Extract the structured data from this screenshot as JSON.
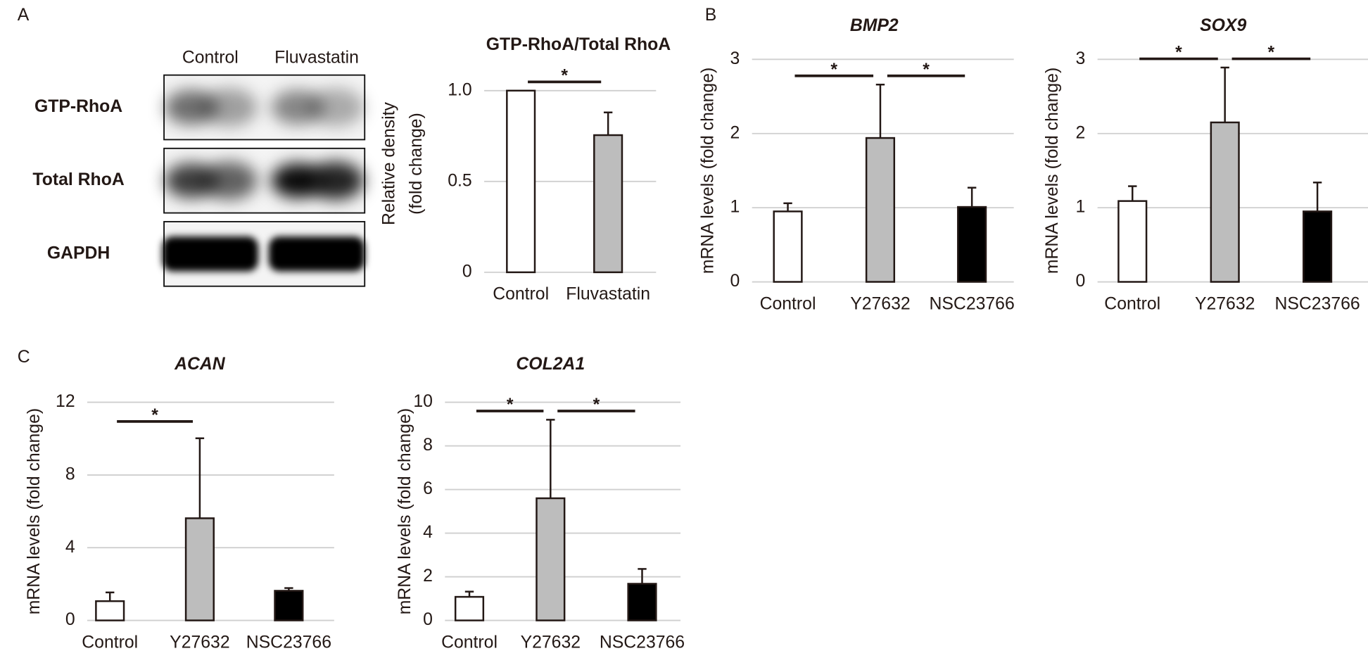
{
  "panels": [
    "A",
    "B",
    "C"
  ],
  "blot": {
    "lanes": [
      "Control",
      "Fluvastatin"
    ],
    "rows": [
      "GTP-RhoA",
      "Total RhoA",
      "GAPDH"
    ]
  },
  "chart_data": [
    {
      "type": "bar",
      "title": "GTP-RhoA/Total RhoA",
      "ylabel": [
        "Relative density",
        "(fold change)"
      ],
      "categories": [
        "Control",
        "Fluvastatin"
      ],
      "values": [
        1.0,
        0.755
      ],
      "errors": [
        0,
        0.125
      ],
      "colors": [
        "#ffffff",
        "#bdbdbd"
      ],
      "ylim": [
        0,
        1.1
      ],
      "yticks": [
        0,
        0.5,
        {
          "value": 1,
          "label": "1.0"
        }
      ],
      "grid": true,
      "significance": [
        {
          "pair": [
            "Control",
            "Fluvastatin"
          ],
          "label": "*"
        }
      ]
    },
    {
      "type": "bar",
      "title": "BMP2",
      "ylabel": [
        "mRNA levels (fold change)"
      ],
      "categories": [
        "Control",
        "Y27632",
        "NSC23766"
      ],
      "values": [
        0.95,
        1.94,
        1.01
      ],
      "errors": [
        0.11,
        0.72,
        0.26
      ],
      "colors": [
        "#ffffff",
        "#bdbdbd",
        "#000000"
      ],
      "ylim": [
        0,
        3
      ],
      "yticks": [
        0,
        1,
        2,
        3
      ],
      "grid": true,
      "significance": [
        {
          "pair": [
            "Control",
            "Y27632"
          ],
          "label": "*"
        },
        {
          "pair": [
            "Y27632",
            "NSC23766"
          ],
          "label": "*"
        }
      ]
    },
    {
      "type": "bar",
      "title": "SOX9",
      "ylabel": [
        "mRNA levels (fold change)"
      ],
      "categories": [
        "Control",
        "Y27632",
        "NSC23766"
      ],
      "values": [
        1.09,
        2.15,
        0.95
      ],
      "errors": [
        0.2,
        0.74,
        0.39
      ],
      "colors": [
        "#ffffff",
        "#bdbdbd",
        "#000000"
      ],
      "ylim": [
        0,
        3
      ],
      "yticks": [
        0,
        1,
        2,
        3
      ],
      "grid": true,
      "significance": [
        {
          "pair": [
            "Control",
            "Y27632"
          ],
          "label": "*"
        },
        {
          "pair": [
            "Y27632",
            "NSC23766"
          ],
          "label": "*"
        }
      ]
    },
    {
      "type": "bar",
      "title": "ACAN",
      "ylabel": [
        "mRNA levels (fold change)"
      ],
      "categories": [
        "Control",
        "Y27632",
        "NSC23766"
      ],
      "values": [
        1.06,
        5.62,
        1.63
      ],
      "errors": [
        0.48,
        4.4,
        0.15
      ],
      "colors": [
        "#ffffff",
        "#bdbdbd",
        "#000000"
      ],
      "ylim": [
        0,
        12
      ],
      "yticks": [
        0,
        4,
        8,
        12
      ],
      "grid": true,
      "significance": [
        {
          "pair": [
            "Control",
            "Y27632"
          ],
          "label": "*"
        }
      ]
    },
    {
      "type": "bar",
      "title": "COL2A1",
      "ylabel": [
        "mRNA levels (fold change)"
      ],
      "categories": [
        "Control",
        "Y27632",
        "NSC23766"
      ],
      "values": [
        1.08,
        5.6,
        1.68
      ],
      "errors": [
        0.24,
        3.6,
        0.68
      ],
      "colors": [
        "#ffffff",
        "#bdbdbd",
        "#000000"
      ],
      "ylim": [
        0,
        10
      ],
      "yticks": [
        0,
        2,
        4,
        6,
        8,
        10
      ],
      "grid": true,
      "significance": [
        {
          "pair": [
            "Control",
            "Y27632"
          ],
          "label": "*"
        },
        {
          "pair": [
            "Y27632",
            "NSC23766"
          ],
          "label": "*"
        }
      ]
    }
  ]
}
